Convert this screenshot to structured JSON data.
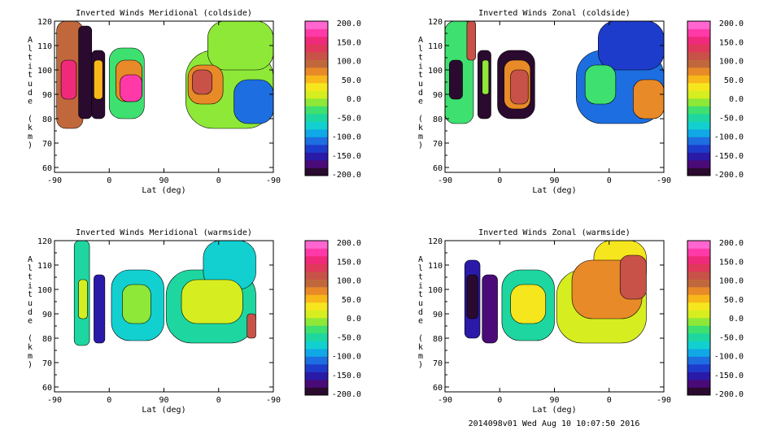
{
  "footer": {
    "text": "2014098v01 Wed Aug 10 10:07:50 2016"
  },
  "palette": [
    "#2a0a2e",
    "#4a0a78",
    "#2a1aa8",
    "#1e3ccc",
    "#1d6ee0",
    "#10a8e6",
    "#12d0d0",
    "#1ed6a0",
    "#3ee070",
    "#8ee838",
    "#d6ee20",
    "#f6e61e",
    "#f8b81a",
    "#e88a28",
    "#c0683c",
    "#c85248",
    "#e0385a",
    "#f02a7a",
    "#ff3aa8",
    "#ff66d0"
  ],
  "chart_data": [
    {
      "type": "heatmap",
      "id": "meridional-cold",
      "title": "Inverted Winds Meridional (coldside)",
      "xlabel": "Lat (deg)",
      "ylabel": "Altitude (km)",
      "xticks": [
        "-90",
        "0",
        "90",
        "0",
        "-90"
      ],
      "yticks": [
        60,
        70,
        80,
        90,
        100,
        110,
        120
      ],
      "ylim": [
        58,
        120
      ],
      "colorbar": {
        "min": -200.0,
        "max": 200.0,
        "labels": [
          "200.0",
          "150.0",
          "100.0",
          "50.0",
          "0.0",
          "-50.0",
          "-100.0",
          "-150.0",
          "-200.0"
        ]
      },
      "blobs": [
        {
          "x": [
            0.01,
            0.13
          ],
          "y": [
            76,
            120
          ],
          "v": 95
        },
        {
          "x": [
            0.03,
            0.1
          ],
          "y": [
            88,
            104
          ],
          "v": 140
        },
        {
          "x": [
            0.11,
            0.17
          ],
          "y": [
            80,
            118
          ],
          "v": -200
        },
        {
          "x": [
            0.17,
            0.23
          ],
          "y": [
            80,
            108
          ],
          "v": -200
        },
        {
          "x": [
            0.18,
            0.22
          ],
          "y": [
            88,
            104
          ],
          "v": 55
        },
        {
          "x": [
            0.25,
            0.41
          ],
          "y": [
            80,
            109
          ],
          "v": -40
        },
        {
          "x": [
            0.28,
            0.4
          ],
          "y": [
            87,
            104
          ],
          "v": 70
        },
        {
          "x": [
            0.3,
            0.4
          ],
          "y": [
            87,
            98
          ],
          "v": 170
        },
        {
          "x": [
            0.6,
            1.0
          ],
          "y": [
            76,
            108
          ],
          "v": -20
        },
        {
          "x": [
            0.7,
            1.0
          ],
          "y": [
            100,
            120
          ],
          "v": -10
        },
        {
          "x": [
            0.61,
            0.77
          ],
          "y": [
            86,
            102
          ],
          "v": 70
        },
        {
          "x": [
            0.63,
            0.72
          ],
          "y": [
            90,
            100
          ],
          "v": 105
        },
        {
          "x": [
            0.82,
            1.0
          ],
          "y": [
            78,
            96
          ],
          "v": -120
        }
      ]
    },
    {
      "type": "heatmap",
      "id": "zonal-cold",
      "title": "Inverted Winds Zonal (coldside)",
      "xlabel": "Lat (deg)",
      "ylabel": "Altitude (km)",
      "xticks": [
        "-90",
        "0",
        "90",
        "0",
        "-90"
      ],
      "yticks": [
        60,
        70,
        80,
        90,
        100,
        110,
        120
      ],
      "ylim": [
        58,
        120
      ],
      "colorbar": {
        "min": -200.0,
        "max": 200.0,
        "labels": [
          "200.0",
          "150.0",
          "100.0",
          "50.0",
          "0.0",
          "-50.0",
          "-100.0",
          "-150.0",
          "-200.0"
        ]
      },
      "blobs": [
        {
          "x": [
            0.0,
            0.13
          ],
          "y": [
            78,
            120
          ],
          "v": -30
        },
        {
          "x": [
            0.02,
            0.08
          ],
          "y": [
            88,
            104
          ],
          "v": -190
        },
        {
          "x": [
            0.1,
            0.14
          ],
          "y": [
            104,
            120
          ],
          "v": 100
        },
        {
          "x": [
            0.15,
            0.21
          ],
          "y": [
            80,
            108
          ],
          "v": -200
        },
        {
          "x": [
            0.17,
            0.2
          ],
          "y": [
            90,
            104
          ],
          "v": -20
        },
        {
          "x": [
            0.24,
            0.41
          ],
          "y": [
            80,
            108
          ],
          "v": -190
        },
        {
          "x": [
            0.27,
            0.39
          ],
          "y": [
            84,
            104
          ],
          "v": 60
        },
        {
          "x": [
            0.3,
            0.38
          ],
          "y": [
            86,
            100
          ],
          "v": 110
        },
        {
          "x": [
            0.6,
            1.0
          ],
          "y": [
            78,
            108
          ],
          "v": -110
        },
        {
          "x": [
            0.7,
            1.0
          ],
          "y": [
            100,
            120
          ],
          "v": -140
        },
        {
          "x": [
            0.64,
            0.78
          ],
          "y": [
            86,
            102
          ],
          "v": -40
        },
        {
          "x": [
            0.86,
            1.0
          ],
          "y": [
            80,
            96
          ],
          "v": 60
        }
      ]
    },
    {
      "type": "heatmap",
      "id": "meridional-warm",
      "title": "Inverted Winds Meridional (warmside)",
      "xlabel": "Lat (deg)",
      "ylabel": "Altitude (km)",
      "xticks": [
        "-90",
        "0",
        "90",
        "0",
        "-90"
      ],
      "yticks": [
        60,
        70,
        80,
        90,
        100,
        110,
        120
      ],
      "ylim": [
        58,
        120
      ],
      "colorbar": {
        "min": -200.0,
        "max": 200.0,
        "labels": [
          "200.0",
          "150.0",
          "100.0",
          "50.0",
          "0.0",
          "-50.0",
          "-100.0",
          "-150.0",
          "-200.0"
        ]
      },
      "blobs": [
        {
          "x": [
            0.09,
            0.16
          ],
          "y": [
            77,
            120
          ],
          "v": -60
        },
        {
          "x": [
            0.11,
            0.15
          ],
          "y": [
            88,
            104
          ],
          "v": 10
        },
        {
          "x": [
            0.18,
            0.23
          ],
          "y": [
            78,
            106
          ],
          "v": -150
        },
        {
          "x": [
            0.26,
            0.5
          ],
          "y": [
            79,
            108
          ],
          "v": -80
        },
        {
          "x": [
            0.31,
            0.44
          ],
          "y": [
            86,
            102
          ],
          "v": -10
        },
        {
          "x": [
            0.51,
            0.92
          ],
          "y": [
            78,
            108
          ],
          "v": -60
        },
        {
          "x": [
            0.68,
            0.92
          ],
          "y": [
            100,
            120
          ],
          "v": -70
        },
        {
          "x": [
            0.58,
            0.86
          ],
          "y": [
            86,
            104
          ],
          "v": 0
        },
        {
          "x": [
            0.88,
            0.92
          ],
          "y": [
            80,
            90
          ],
          "v": 110
        }
      ]
    },
    {
      "type": "heatmap",
      "id": "zonal-warm",
      "title": "Inverted Winds Zonal (warmside)",
      "xlabel": "Lat (deg)",
      "ylabel": "Altitude (km)",
      "xticks": [
        "-90",
        "0",
        "90",
        "0",
        "-90"
      ],
      "yticks": [
        60,
        70,
        80,
        90,
        100,
        110,
        120
      ],
      "ylim": [
        58,
        120
      ],
      "colorbar": {
        "min": -200.0,
        "max": 200.0,
        "labels": [
          "200.0",
          "150.0",
          "100.0",
          "50.0",
          "0.0",
          "-50.0",
          "-100.0",
          "-150.0",
          "-200.0"
        ]
      },
      "blobs": [
        {
          "x": [
            0.09,
            0.16
          ],
          "y": [
            80,
            112
          ],
          "v": -150
        },
        {
          "x": [
            0.1,
            0.15
          ],
          "y": [
            88,
            106
          ],
          "v": -190
        },
        {
          "x": [
            0.17,
            0.24
          ],
          "y": [
            78,
            106
          ],
          "v": -170
        },
        {
          "x": [
            0.26,
            0.5
          ],
          "y": [
            79,
            108
          ],
          "v": -60
        },
        {
          "x": [
            0.3,
            0.46
          ],
          "y": [
            86,
            102
          ],
          "v": 20
        },
        {
          "x": [
            0.51,
            0.92
          ],
          "y": [
            78,
            108
          ],
          "v": 0
        },
        {
          "x": [
            0.68,
            0.92
          ],
          "y": [
            100,
            120
          ],
          "v": 20
        },
        {
          "x": [
            0.58,
            0.9
          ],
          "y": [
            88,
            112
          ],
          "v": 60
        },
        {
          "x": [
            0.8,
            0.92
          ],
          "y": [
            96,
            114
          ],
          "v": 110
        }
      ]
    }
  ]
}
